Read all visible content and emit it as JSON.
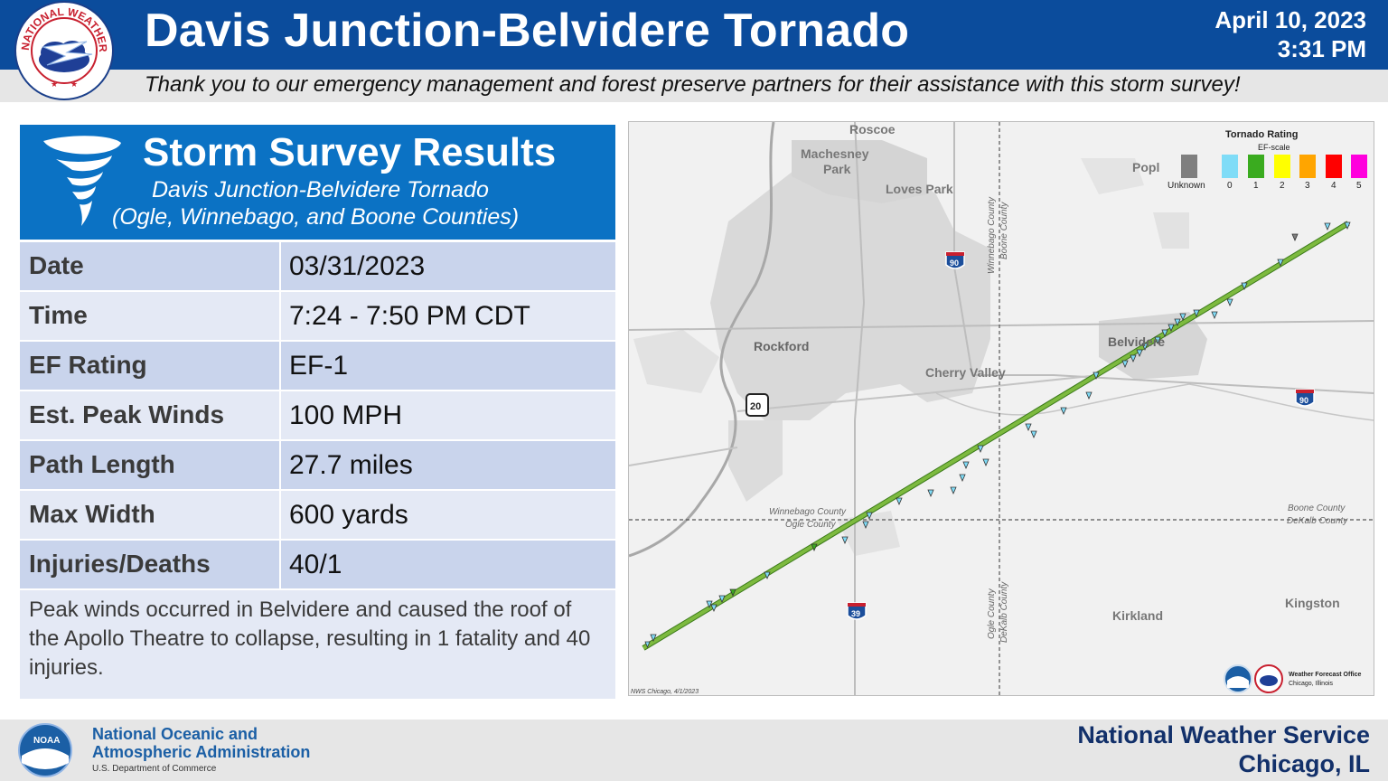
{
  "header": {
    "title": "Davis Junction-Belvidere Tornado",
    "date": "April 10, 2023",
    "time": "3:31 PM",
    "thanks": "Thank you to our emergency management and forest preserve partners for their assistance with this storm survey!",
    "logo_text": "NATIONAL WEATHER SERVICE"
  },
  "panel": {
    "title": "Storm Survey Results",
    "subtitle1": "Davis Junction-Belvidere Tornado",
    "subtitle2": "(Ogle, Winnebago, and Boone Counties)",
    "rows": [
      {
        "label": "Date",
        "value": "03/31/2023"
      },
      {
        "label": "Time",
        "value": "7:24 - 7:50 PM CDT"
      },
      {
        "label": "EF Rating",
        "value": "EF-1"
      },
      {
        "label": "Est. Peak Winds",
        "value": "100 MPH"
      },
      {
        "label": "Path Length",
        "value": "27.7 miles"
      },
      {
        "label": "Max Width",
        "value": "600 yards"
      },
      {
        "label": "Injuries/Deaths",
        "value": "40/1"
      }
    ],
    "note": "Peak winds occurred in Belvidere and caused the roof of the Apollo Theatre to collapse, resulting in 1 fatality and 40 injuries."
  },
  "map": {
    "places": [
      "Roscoe",
      "Machesney Park",
      "Loves Park",
      "Popl",
      "Rockford",
      "Cherry Valley",
      "Belvidere",
      "Kirkland",
      "Kingston"
    ],
    "county_labels": {
      "wb_top": "Winnebago County",
      "bo_top": "Boone County",
      "wb_left": "Winnebago County",
      "og_left": "Ogle County",
      "bo_right": "Boone County",
      "dk_right": "DeKalb County",
      "og_bottom": "Ogle County",
      "dk_bottom": "DeKalb County"
    },
    "highways": [
      "90",
      "90",
      "20",
      "39"
    ],
    "legend": {
      "title": "Tornado Rating",
      "subtitle": "EF-scale",
      "items": [
        {
          "label": "Unknown",
          "color": "#7f7f7f"
        },
        {
          "label": "0",
          "color": "#7fdcf7"
        },
        {
          "label": "1",
          "color": "#3aab1f"
        },
        {
          "label": "2",
          "color": "#ffff00"
        },
        {
          "label": "3",
          "color": "#ffa500"
        },
        {
          "label": "4",
          "color": "#ff0000"
        },
        {
          "label": "5",
          "color": "#ff00dd"
        }
      ]
    },
    "credit": "NWS Chicago, 4/1/2023",
    "wfo_line1": "Weather Forecast Office",
    "wfo_line2": "Chicago, Illinois",
    "track_color": "#7dba3f"
  },
  "footer": {
    "noaa_line1": "National Oceanic and",
    "noaa_line2": "Atmospheric Administration",
    "noaa_line3": "U.S. Department of Commerce",
    "noaa_logo_text": "NOAA",
    "nws_line1": "National Weather Service",
    "nws_line2": "Chicago, IL"
  }
}
